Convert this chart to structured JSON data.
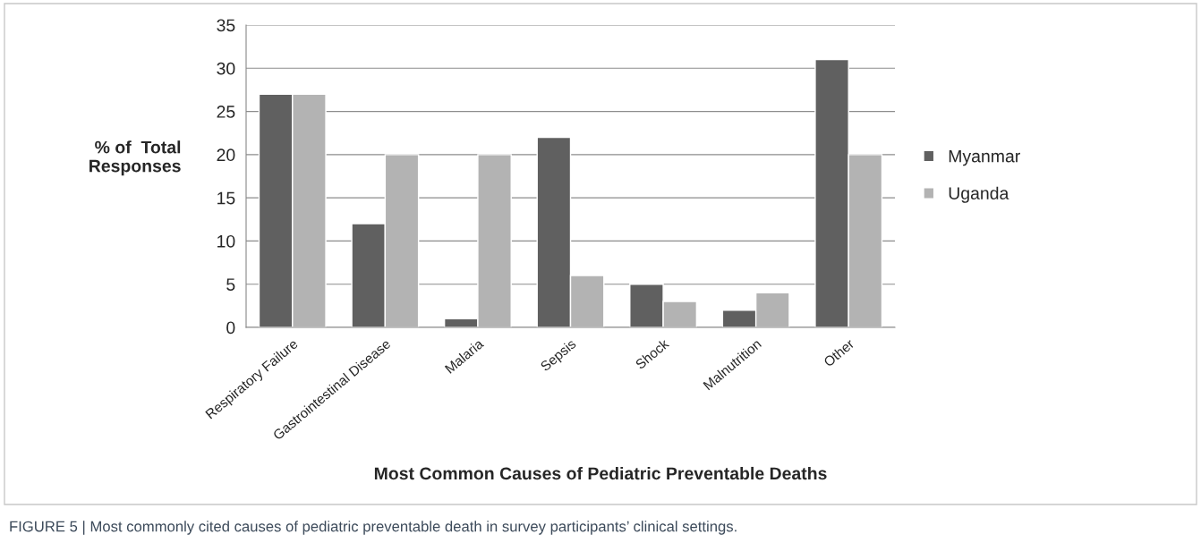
{
  "chart_data": {
    "type": "bar",
    "xlabel": "Most Common Causes of Pediatric Preventable Deaths",
    "ylabel": "% of  Total\nResponses",
    "categories": [
      "Respiratory Failure",
      "Gastrointestinal Disease",
      "Malaria",
      "Sepsis",
      "Shock",
      "Malnutrition",
      "Other"
    ],
    "series": [
      {
        "name": "Myanmar",
        "color": "#606060",
        "values": [
          27,
          12,
          1,
          22,
          5,
          2,
          31
        ]
      },
      {
        "name": "Uganda",
        "color": "#b3b3b3",
        "values": [
          27,
          20,
          20,
          6,
          3,
          4,
          20
        ]
      }
    ],
    "ylim": [
      0,
      35
    ],
    "yticks": [
      0,
      5,
      10,
      15,
      20,
      25,
      30,
      35
    ],
    "grid": "y",
    "legend": "right",
    "annotations": [
      "FIGURE 5 | Most commonly cited causes of pediatric preventable death in survey participants’ clinical settings."
    ]
  }
}
